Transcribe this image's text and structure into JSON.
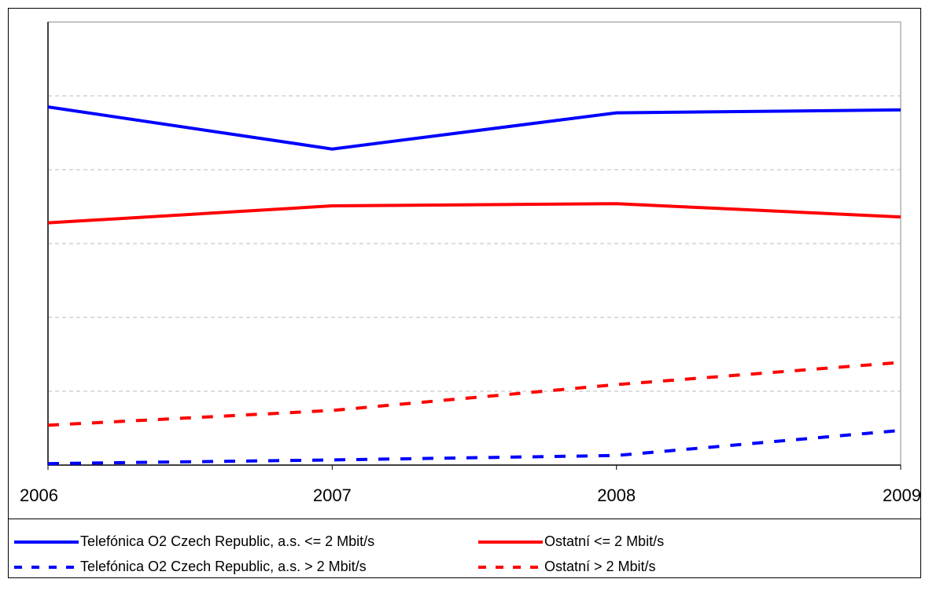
{
  "chart_data": {
    "type": "line",
    "categories": [
      "2006",
      "2007",
      "2008",
      "2009"
    ],
    "series": [
      {
        "name": "Telefónica O2 Czech Republic, a.s. <= 2 Mbit/s",
        "color": "#0000ff",
        "dashed": false,
        "values": [
          4.85,
          4.28,
          4.77,
          4.81
        ]
      },
      {
        "name": "Ostatní  <= 2 Mbit/s",
        "color": "#ff0000",
        "dashed": false,
        "values": [
          3.28,
          3.51,
          3.54,
          3.36
        ]
      },
      {
        "name": "Telefónica O2 Czech Republic, a.s. > 2 Mbit/s",
        "color": "#0000ff",
        "dashed": true,
        "values": [
          0.02,
          0.07,
          0.13,
          0.47
        ]
      },
      {
        "name": "Ostatní > 2 Mbit/s",
        "color": "#ff0000",
        "dashed": true,
        "values": [
          0.54,
          0.74,
          1.09,
          1.39
        ]
      }
    ],
    "ylim": [
      0,
      6
    ],
    "yticks": [
      1,
      2,
      3,
      4,
      5
    ],
    "grid": true
  }
}
